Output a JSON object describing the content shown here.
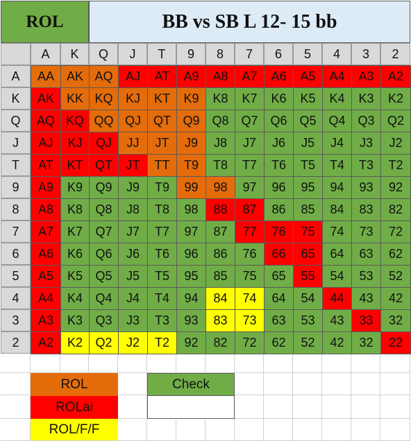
{
  "title_left": "ROL",
  "title_right": "BB vs SB L 12- 15 bb",
  "ranks": [
    "A",
    "K",
    "Q",
    "J",
    "T",
    "9",
    "8",
    "7",
    "6",
    "5",
    "4",
    "3",
    "2"
  ],
  "colors": {
    "ROL": "#e46c0a",
    "ROLai": "#ff0000",
    "ROL/F/F": "#ffff00",
    "Check": "#70ad47"
  },
  "legend": [
    {
      "label": "ROL",
      "action": "ROL",
      "slot": "a"
    },
    {
      "label": "ROLai",
      "action": "ROLai",
      "slot": "b"
    },
    {
      "label": "ROL/F/F",
      "action": "ROL/F/F",
      "slot": "c"
    },
    {
      "label": "Check",
      "action": "Check",
      "slot": "d"
    }
  ],
  "grid": [
    [
      "ROL",
      "ROL",
      "ROL",
      "ROLai",
      "ROLai",
      "ROLai",
      "ROLai",
      "ROLai",
      "ROLai",
      "ROLai",
      "ROLai",
      "ROLai",
      "ROLai"
    ],
    [
      "ROLai",
      "ROL",
      "ROL",
      "ROL",
      "ROL",
      "ROL",
      "Check",
      "Check",
      "Check",
      "Check",
      "Check",
      "Check",
      "Check"
    ],
    [
      "ROLai",
      "ROLai",
      "ROL",
      "ROL",
      "ROL",
      "ROL",
      "Check",
      "Check",
      "Check",
      "Check",
      "Check",
      "Check",
      "Check"
    ],
    [
      "ROLai",
      "ROLai",
      "ROLai",
      "ROL",
      "ROL",
      "ROL",
      "Check",
      "Check",
      "Check",
      "Check",
      "Check",
      "Check",
      "Check"
    ],
    [
      "ROLai",
      "ROLai",
      "ROLai",
      "ROLai",
      "ROL",
      "ROL",
      "Check",
      "Check",
      "Check",
      "Check",
      "Check",
      "Check",
      "Check"
    ],
    [
      "ROLai",
      "Check",
      "Check",
      "Check",
      "Check",
      "ROL",
      "ROL",
      "Check",
      "Check",
      "Check",
      "Check",
      "Check",
      "Check"
    ],
    [
      "ROLai",
      "Check",
      "Check",
      "Check",
      "Check",
      "Check",
      "ROLai",
      "ROLai",
      "Check",
      "Check",
      "Check",
      "Check",
      "Check"
    ],
    [
      "ROLai",
      "Check",
      "Check",
      "Check",
      "Check",
      "Check",
      "Check",
      "ROLai",
      "ROLai",
      "ROLai",
      "Check",
      "Check",
      "Check"
    ],
    [
      "ROLai",
      "Check",
      "Check",
      "Check",
      "Check",
      "Check",
      "Check",
      "Check",
      "ROLai",
      "ROLai",
      "Check",
      "Check",
      "Check"
    ],
    [
      "ROLai",
      "Check",
      "Check",
      "Check",
      "Check",
      "Check",
      "Check",
      "Check",
      "Check",
      "ROLai",
      "Check",
      "Check",
      "Check"
    ],
    [
      "ROLai",
      "Check",
      "Check",
      "Check",
      "Check",
      "Check",
      "ROL/F/F",
      "ROL/F/F",
      "Check",
      "Check",
      "ROLai",
      "Check",
      "Check"
    ],
    [
      "ROLai",
      "Check",
      "Check",
      "Check",
      "Check",
      "Check",
      "ROL/F/F",
      "ROL/F/F",
      "Check",
      "Check",
      "Check",
      "ROLai",
      "Check"
    ],
    [
      "ROLai",
      "ROL/F/F",
      "ROL/F/F",
      "ROL/F/F",
      "ROL/F/F",
      "Check",
      "Check",
      "Check",
      "Check",
      "Check",
      "Check",
      "Check",
      "ROLai"
    ]
  ]
}
